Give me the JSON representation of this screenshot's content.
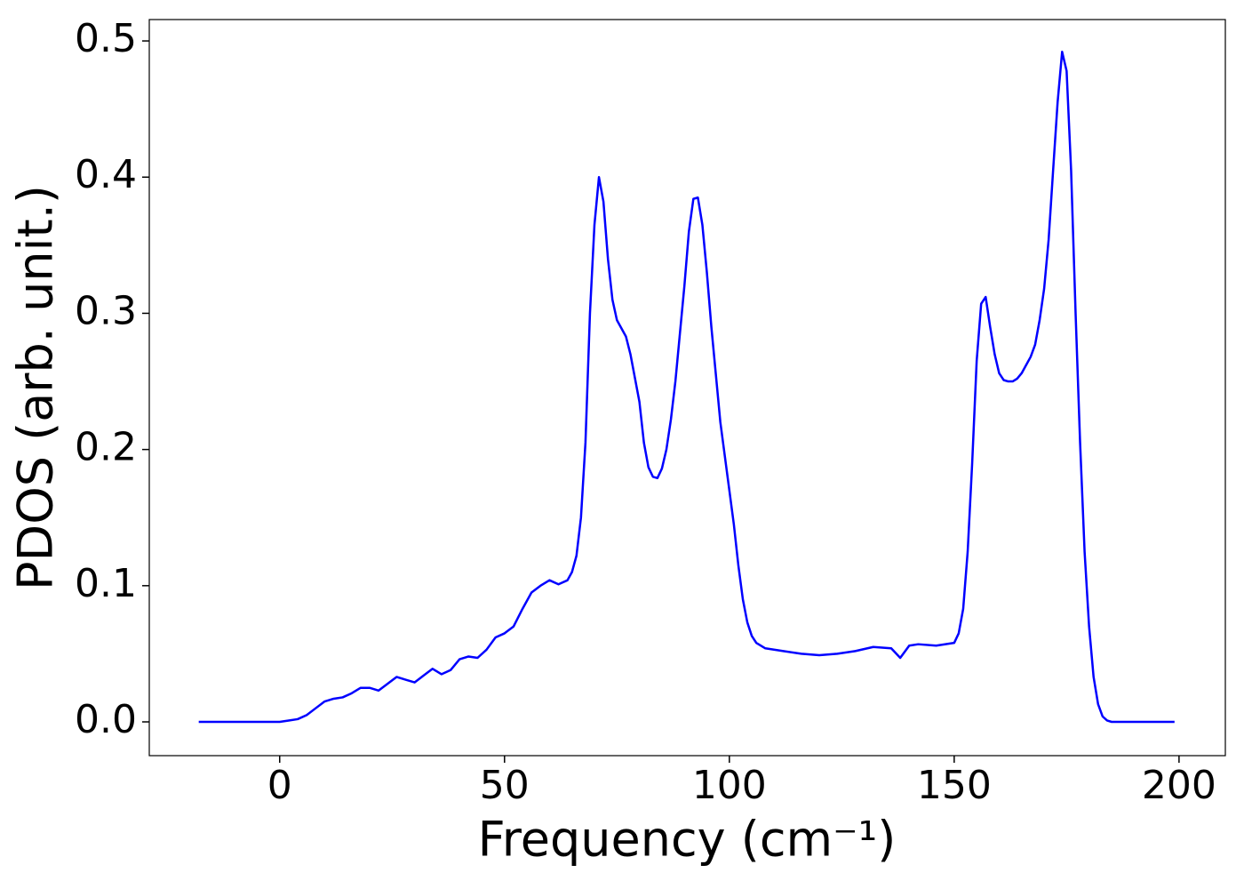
{
  "chart_data": {
    "type": "line",
    "xlabel": "Frequency (cm⁻¹)",
    "ylabel": "PDOS (arb. unit.)",
    "x": [
      -18,
      -10,
      0,
      2,
      4,
      6,
      8,
      10,
      12,
      14,
      16,
      18,
      20,
      22,
      24,
      26,
      28,
      30,
      32,
      34,
      36,
      38,
      40,
      42,
      44,
      46,
      48,
      50,
      52,
      54,
      56,
      58,
      60,
      62,
      64,
      65,
      66,
      67,
      68,
      69,
      70,
      71,
      72,
      73,
      74,
      75,
      77,
      78,
      80,
      81,
      82,
      83,
      84,
      85,
      86,
      87,
      88,
      89,
      90,
      91,
      92,
      93,
      94,
      95,
      96,
      97,
      98,
      99,
      100,
      101,
      102,
      103,
      104,
      105,
      106,
      108,
      112,
      116,
      120,
      124,
      128,
      132,
      136,
      138,
      140,
      142,
      146,
      150,
      151,
      152,
      153,
      154,
      155,
      156,
      157,
      158,
      159,
      160,
      161,
      162,
      163,
      164,
      165,
      166,
      167,
      168,
      169,
      170,
      171,
      172,
      173,
      174,
      175,
      176,
      177,
      178,
      179,
      180,
      181,
      182,
      183,
      184,
      185,
      199
    ],
    "series": [
      {
        "color": "#0000ff",
        "values": [
          0,
          0,
          0,
          0.001,
          0.002,
          0.005,
          0.01,
          0.015,
          0.017,
          0.018,
          0.021,
          0.025,
          0.025,
          0.023,
          0.028,
          0.033,
          0.031,
          0.029,
          0.034,
          0.039,
          0.035,
          0.038,
          0.046,
          0.048,
          0.047,
          0.053,
          0.062,
          0.065,
          0.07,
          0.083,
          0.095,
          0.1,
          0.104,
          0.101,
          0.104,
          0.11,
          0.122,
          0.15,
          0.205,
          0.3,
          0.365,
          0.4,
          0.382,
          0.34,
          0.31,
          0.295,
          0.283,
          0.27,
          0.235,
          0.205,
          0.187,
          0.18,
          0.179,
          0.186,
          0.2,
          0.222,
          0.25,
          0.285,
          0.32,
          0.36,
          0.384,
          0.385,
          0.365,
          0.33,
          0.29,
          0.255,
          0.22,
          0.195,
          0.17,
          0.145,
          0.115,
          0.09,
          0.073,
          0.063,
          0.058,
          0.054,
          0.052,
          0.05,
          0.049,
          0.05,
          0.052,
          0.055,
          0.054,
          0.047,
          0.056,
          0.057,
          0.056,
          0.058,
          0.065,
          0.083,
          0.125,
          0.19,
          0.265,
          0.307,
          0.312,
          0.29,
          0.27,
          0.256,
          0.251,
          0.25,
          0.25,
          0.252,
          0.256,
          0.262,
          0.268,
          0.277,
          0.295,
          0.318,
          0.354,
          0.405,
          0.455,
          0.492,
          0.478,
          0.405,
          0.3,
          0.205,
          0.125,
          0.07,
          0.033,
          0.013,
          0.004,
          0.001,
          0,
          0
        ]
      }
    ],
    "xlim": [
      -29,
      210.3
    ],
    "ylim": [
      -0.0248,
      0.5157
    ],
    "xticks": [
      0,
      50,
      100,
      150,
      200
    ],
    "yticks": [
      {
        "value": 0,
        "label": "0.0"
      },
      0.1,
      0.2,
      0.3,
      0.4,
      0.5
    ]
  }
}
